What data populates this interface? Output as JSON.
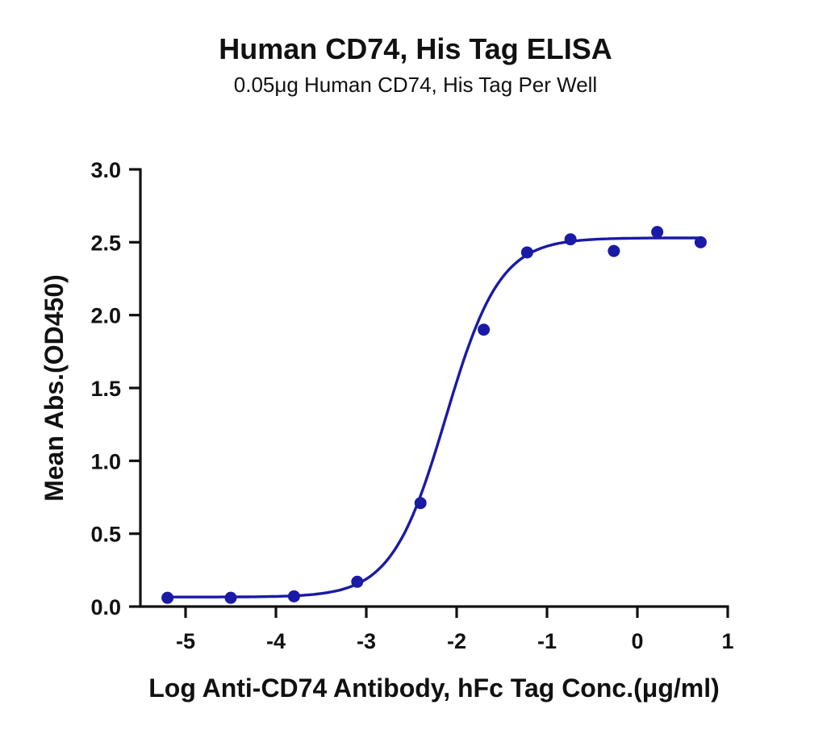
{
  "chart_data": {
    "type": "scatter",
    "title": "Human CD74, His Tag ELISA",
    "subtitle": "0.05μg Human CD74, His Tag Per Well",
    "xlabel": "Log Anti-CD74 Antibody, hFc Tag Conc.(μg/ml)",
    "ylabel": "Mean Abs.(OD450)",
    "xlim": [
      -5.5,
      1
    ],
    "ylim": [
      0,
      3.0
    ],
    "xticks": [
      -5,
      -4,
      -3,
      -2,
      -1,
      0,
      1
    ],
    "xtick_labels": [
      "-5",
      "-4",
      "-3",
      "-2",
      "-1",
      "0",
      "1"
    ],
    "yticks": [
      0.0,
      0.5,
      1.0,
      1.5,
      2.0,
      2.5,
      3.0
    ],
    "ytick_labels": [
      "0.0",
      "0.5",
      "1.0",
      "1.5",
      "2.0",
      "2.5",
      "3.0"
    ],
    "grid": false,
    "color": "#1a1aa6",
    "series": [
      {
        "x": [
          -5.2,
          -4.5,
          -3.8,
          -3.1,
          -2.4,
          -1.7,
          -1.22,
          -0.74,
          -0.26,
          0.22,
          0.7
        ],
        "y": [
          0.06,
          0.06,
          0.07,
          0.17,
          0.71,
          1.9,
          2.43,
          2.52,
          2.44,
          2.57,
          2.5
        ]
      }
    ],
    "fit": {
      "model": "4PL",
      "bottom": 0.065,
      "top": 2.53,
      "log_ec50": -2.12,
      "hill_slope": 1.45
    }
  }
}
